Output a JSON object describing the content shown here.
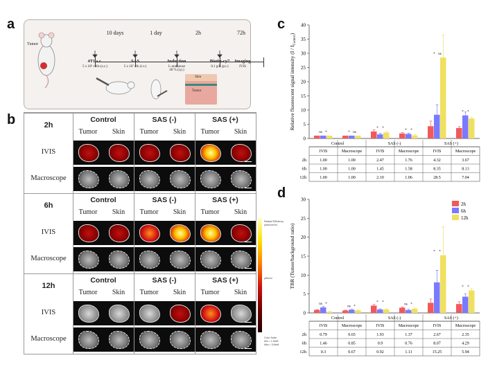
{
  "panel_letters": {
    "a": "a",
    "b": "b",
    "c": "c",
    "d": "d"
  },
  "panel_a": {
    "tumor_label": "Tumor",
    "intervals": [
      "10 days",
      "1 day",
      "2h",
      "72h"
    ],
    "steps": [
      {
        "name": "4T1 s.c.",
        "sub": "5 x 10⁵ cells (s.c.)"
      },
      {
        "name": "SAS",
        "sub": "5 x 10⁷ cfu (i.v.)"
      },
      {
        "name": "Induction",
        "sub": "L-arabinose\n40 % (i.p.)"
      },
      {
        "name": "Biotin-cy7",
        "sub": "0.1 g/L (p.t.)"
      },
      {
        "name": "Imaging",
        "sub": "IVIS"
      }
    ],
    "skin_label": "Skin",
    "tumor_tissue_label": "Tumor"
  },
  "panel_b": {
    "conditions": [
      "Control",
      "SAS (-)",
      "SAS (+)"
    ],
    "columns": [
      "Tumor",
      "Skin",
      "Tumor",
      "Skin",
      "Tumor",
      "Skin"
    ],
    "rows": [
      "IVIS",
      "Macroscope"
    ],
    "groups": [
      {
        "time": "2h",
        "ivis_levels": [
          0.35,
          0.45,
          0.35,
          0.4,
          0.9,
          0.55
        ]
      },
      {
        "time": "6h",
        "ivis_levels": [
          0.45,
          0.55,
          0.7,
          0.9,
          0.95,
          0.6
        ]
      },
      {
        "time": "12h",
        "ivis_levels": [
          0.1,
          0.3,
          0.1,
          0.35,
          0.8,
          0.15
        ]
      }
    ],
    "colorbar_labels": [
      "Radiant Efficiency",
      "p/sec/cm²/sr",
      "µW/cm²",
      "Color Scale",
      "Min = 1.26e8",
      "Max = 3.64e8"
    ]
  },
  "colors": {
    "2h": "#f05a5a",
    "6h": "#7a7aff",
    "12h": "#f0e060"
  },
  "chart_data": [
    {
      "type": "bar",
      "panel": "c",
      "ylabel": "Relative fluorescent signal intensity (I / I",
      "ylabel_sub": "Control",
      "ylabel_end": ")",
      "ylim": [
        0,
        40
      ],
      "yticks": [
        0,
        5,
        10,
        15,
        20,
        25,
        30,
        35,
        40
      ],
      "groups": [
        "Control",
        "SAS (-)",
        "SAS (+)"
      ],
      "categories": [
        "IVIS",
        "Macroscope",
        "IVIS",
        "Macroscope",
        "IVIS",
        "Macroscope"
      ],
      "series": [
        {
          "name": "2h",
          "values": [
            1.0,
            1.0,
            2.47,
            1.76,
            4.32,
            3.67
          ],
          "display": [
            "1.00",
            "1.00",
            "2.47",
            "1.76",
            "4.32",
            "3.67"
          ],
          "err": [
            0,
            0,
            0.6,
            0.3,
            1.8,
            0.5
          ]
        },
        {
          "name": "6h",
          "values": [
            1.0,
            1.0,
            1.45,
            1.58,
            8.35,
            8.13
          ],
          "display": [
            "1.00",
            "1.00",
            "1.45",
            "1.58",
            "8.35",
            "8.13"
          ],
          "err": [
            0,
            0,
            0.4,
            0.3,
            3.5,
            1.2
          ]
        },
        {
          "name": "12h",
          "values": [
            1.0,
            1.0,
            2.1,
            1.06,
            28.5,
            7.04
          ],
          "display": [
            "1.00",
            "1.00",
            "2.10",
            "1.06",
            "28.5",
            "7.04"
          ],
          "err": [
            0,
            0,
            0.4,
            0.3,
            8.0,
            0.5
          ]
        }
      ],
      "sig": [
        "ns",
        "*",
        "*",
        "ns",
        "*",
        "*",
        "*",
        "*",
        "*",
        "ns",
        "*",
        "*"
      ]
    },
    {
      "type": "bar",
      "panel": "d",
      "ylabel": "TBR (Tumor/background ratio)",
      "ylim": [
        0,
        30
      ],
      "yticks": [
        0,
        5,
        10,
        15,
        20,
        25,
        30
      ],
      "groups": [
        "Control",
        "SAS (-)",
        "SAS (+)"
      ],
      "categories": [
        "IVIS",
        "Macroscope",
        "IVIS",
        "Macroscope",
        "IVIS",
        "Macroscope"
      ],
      "series": [
        {
          "name": "2h",
          "values": [
            0.79,
            0.65,
            1.93,
            1.37,
            2.67,
            2.35
          ],
          "display": [
            "0.79",
            "0.65",
            "1.93",
            "1.37",
            "2.67",
            "2.35"
          ],
          "err": [
            0.1,
            0.1,
            0.3,
            0.2,
            1.0,
            0.6
          ]
        },
        {
          "name": "6h",
          "values": [
            1.46,
            0.85,
            0.9,
            0.76,
            8.07,
            4.29
          ],
          "display": [
            "1.46",
            "0.85",
            "0.9",
            "0.76",
            "8.07",
            "4.29"
          ],
          "err": [
            0.3,
            0.1,
            0.2,
            0.2,
            3.2,
            0.8
          ]
        },
        {
          "name": "12h",
          "values": [
            0.3,
            0.67,
            0.92,
            1.11,
            15.25,
            5.94
          ],
          "display": [
            "0.3",
            "0.67",
            "0.92",
            "1.11",
            "15.25",
            "5.94"
          ],
          "err": [
            0.1,
            0.1,
            0.2,
            0.2,
            7.5,
            0.5
          ]
        }
      ],
      "sig": [
        "ns",
        "*",
        "ns",
        "*",
        "*",
        "*",
        "ns",
        "*",
        "*",
        "*",
        "*",
        "*"
      ],
      "legend": [
        "2h",
        "6h",
        "12h"
      ]
    }
  ]
}
